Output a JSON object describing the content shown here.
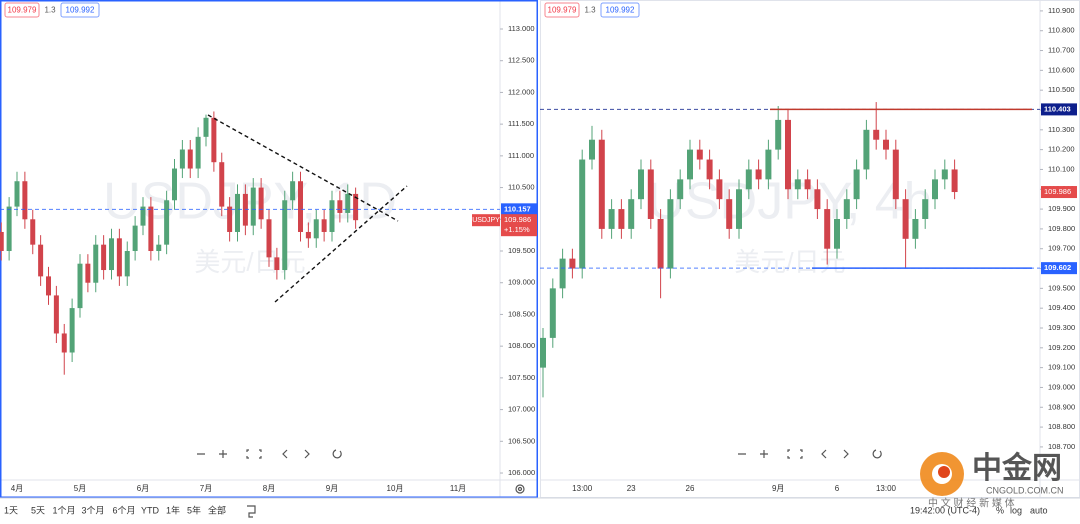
{
  "chart_data": [
    {
      "type": "candlestick",
      "title": "USDJPY, 1D",
      "subtitle": "美元/日元",
      "header_values": [
        109.979,
        1.3,
        109.992
      ],
      "categories": [
        null,
        null,
        "4月",
        null,
        null,
        null,
        null,
        null,
        null,
        null,
        "5月",
        null,
        null,
        null,
        null,
        null,
        null,
        null,
        "6月",
        null,
        null,
        null,
        null,
        null,
        null,
        null,
        "7月",
        null,
        null,
        null,
        null,
        null,
        null,
        null,
        "8月",
        null,
        null,
        null,
        null,
        null,
        null,
        null,
        "9月",
        null,
        null,
        null,
        null,
        null,
        null,
        null,
        "10月",
        null,
        null,
        null,
        null,
        null,
        null,
        null,
        "11月",
        null,
        null,
        null,
        null
      ],
      "series": [
        {
          "name": "USDJPY",
          "up_color": "#53a377",
          "down_color": "#d1434b",
          "open": [
            109.8,
            109.5,
            110.2,
            110.6,
            110.0,
            109.6,
            109.1,
            108.8,
            108.2,
            107.9,
            108.6,
            109.3,
            109.0,
            109.6,
            109.2,
            109.7,
            109.1,
            109.5,
            109.9,
            110.2,
            109.5,
            109.6,
            110.3,
            110.8,
            111.1,
            110.8,
            111.3,
            111.6,
            110.9,
            110.2,
            109.8,
            110.4,
            109.9,
            110.5,
            110.0,
            109.4,
            109.2,
            110.3,
            110.6,
            109.8,
            109.7,
            110.0,
            109.8,
            110.3,
            110.1,
            110.4,
            null,
            null,
            null,
            null,
            null,
            null,
            null,
            null,
            null,
            null,
            null,
            null,
            null,
            null,
            null,
            null,
            null
          ],
          "high": [
            109.95,
            110.35,
            110.75,
            110.75,
            110.15,
            109.75,
            109.25,
            108.95,
            108.35,
            108.75,
            109.45,
            109.45,
            109.75,
            109.75,
            109.85,
            109.85,
            109.65,
            110.05,
            110.35,
            110.35,
            109.75,
            110.45,
            110.95,
            111.25,
            111.25,
            111.45,
            111.65,
            111.7,
            111.05,
            110.35,
            110.55,
            110.55,
            110.65,
            110.65,
            110.15,
            109.55,
            110.45,
            110.75,
            110.75,
            109.95,
            110.15,
            110.15,
            110.45,
            110.45,
            110.55,
            110.5,
            null,
            null,
            null,
            null,
            null,
            null,
            null,
            null,
            null,
            null,
            null,
            null,
            null,
            null,
            null,
            null,
            null
          ],
          "low": [
            109.35,
            109.35,
            110.05,
            109.85,
            109.45,
            108.95,
            108.65,
            108.05,
            107.55,
            107.75,
            108.45,
            108.85,
            108.85,
            109.05,
            109.05,
            108.95,
            108.95,
            109.35,
            109.75,
            109.35,
            109.35,
            109.45,
            110.15,
            110.65,
            110.65,
            110.65,
            111.15,
            110.75,
            110.05,
            109.65,
            109.65,
            109.75,
            109.75,
            109.85,
            109.25,
            109.05,
            109.05,
            110.15,
            109.65,
            109.55,
            109.55,
            109.65,
            109.65,
            109.95,
            109.95,
            109.85,
            null,
            null,
            null,
            null,
            null,
            null,
            null,
            null,
            null,
            null,
            null,
            null,
            null,
            null,
            null,
            null,
            null
          ],
          "close": [
            109.5,
            110.2,
            110.6,
            110.0,
            109.6,
            109.1,
            108.8,
            108.2,
            107.9,
            108.6,
            109.3,
            109.0,
            109.6,
            109.2,
            109.7,
            109.1,
            109.5,
            109.9,
            110.2,
            109.5,
            109.6,
            110.3,
            110.8,
            111.1,
            110.8,
            111.3,
            111.6,
            110.9,
            110.2,
            109.8,
            110.4,
            109.9,
            110.5,
            110.0,
            109.4,
            109.2,
            110.3,
            110.6,
            109.8,
            109.7,
            110.0,
            109.8,
            110.3,
            110.1,
            110.4,
            109.986,
            null,
            null,
            null,
            null,
            null,
            null,
            null,
            null,
            null,
            null,
            null,
            null,
            null,
            null,
            null,
            null,
            null
          ]
        }
      ],
      "price_lines": [
        {
          "value": 110.157,
          "color": "#2962ff"
        }
      ],
      "last_price": 109.986,
      "change": "+1.15%",
      "ylim": [
        105.89,
        113.457
      ],
      "yticks": [
        {
          "value": 106,
          "label": "106.000"
        },
        {
          "value": 106.5,
          "label": "106.500"
        },
        {
          "value": 107,
          "label": "107.000"
        },
        {
          "value": 107.5,
          "label": "107.500"
        },
        {
          "value": 108,
          "label": "108.000"
        },
        {
          "value": 108.5,
          "label": "108.500"
        },
        {
          "value": 109,
          "label": "109.000"
        },
        {
          "value": 109.5,
          "label": "109.500"
        },
        {
          "value": 110,
          "label": "110.000"
        },
        {
          "value": 110.5,
          "label": "110.500"
        },
        {
          "value": 111,
          "label": "111.000"
        },
        {
          "value": 111.5,
          "label": "111.500"
        },
        {
          "value": 112,
          "label": "112.000"
        },
        {
          "value": 112.5,
          "label": "112.500"
        },
        {
          "value": 113,
          "label": "113.000"
        }
      ]
    },
    {
      "type": "candlestick",
      "title": "USDJPY, 4h",
      "subtitle": "美元/日元",
      "header_values": [
        109.979,
        1.3,
        109.992
      ],
      "categories": [
        null,
        null,
        null,
        null,
        "13:00",
        null,
        null,
        null,
        null,
        "23",
        null,
        null,
        null,
        null,
        null,
        "26",
        null,
        null,
        null,
        null,
        null,
        null,
        null,
        null,
        "9月",
        null,
        null,
        null,
        null,
        null,
        "6",
        null,
        null,
        null,
        null,
        "13:00",
        null,
        null,
        null,
        null,
        null,
        null,
        null,
        null,
        null,
        null,
        null,
        null,
        null,
        null,
        null
      ],
      "series": [
        {
          "up_color": "#53a377",
          "down_color": "#d1434b",
          "open": [
            109.1,
            109.25,
            109.5,
            109.65,
            109.6,
            110.15,
            110.25,
            109.8,
            109.9,
            109.8,
            109.95,
            110.1,
            109.85,
            109.6,
            109.95,
            110.05,
            110.2,
            110.15,
            110.05,
            109.95,
            109.8,
            110.0,
            110.1,
            110.05,
            110.2,
            110.35,
            110.0,
            110.05,
            110.0,
            109.9,
            109.7,
            109.85,
            109.95,
            110.1,
            110.3,
            110.25,
            110.2,
            109.95,
            109.75,
            109.85,
            109.95,
            110.05,
            110.1,
            null,
            null,
            null,
            null,
            null,
            null,
            null,
            null
          ],
          "high": [
            109.3,
            109.55,
            109.7,
            109.7,
            110.2,
            110.32,
            110.3,
            109.95,
            109.95,
            110.0,
            110.15,
            110.15,
            109.9,
            110.0,
            110.1,
            110.25,
            110.25,
            110.2,
            110.1,
            110.0,
            110.05,
            110.15,
            110.15,
            110.25,
            110.42,
            110.4,
            110.1,
            110.1,
            110.05,
            109.95,
            109.9,
            110.0,
            110.15,
            110.35,
            110.44,
            110.3,
            110.25,
            110.0,
            109.9,
            110.0,
            110.1,
            110.15,
            110.15,
            null,
            null,
            null,
            null,
            null,
            null,
            null,
            null
          ],
          "low": [
            108.95,
            109.2,
            109.45,
            109.55,
            109.55,
            110.1,
            109.75,
            109.75,
            109.75,
            109.75,
            109.9,
            109.8,
            109.45,
            109.55,
            109.9,
            110.0,
            110.1,
            110.0,
            109.9,
            109.75,
            109.75,
            109.95,
            110.0,
            110.0,
            110.15,
            109.95,
            109.95,
            109.95,
            109.85,
            109.62,
            109.65,
            109.8,
            109.9,
            110.05,
            110.2,
            110.15,
            109.9,
            109.6,
            109.7,
            109.8,
            109.9,
            110.0,
            109.95,
            null,
            null,
            null,
            null,
            null,
            null,
            null,
            null
          ],
          "close": [
            109.25,
            109.5,
            109.65,
            109.6,
            110.15,
            110.25,
            109.8,
            109.9,
            109.8,
            109.95,
            110.1,
            109.85,
            109.6,
            109.95,
            110.05,
            110.2,
            110.15,
            110.05,
            109.95,
            109.8,
            110.0,
            110.1,
            110.05,
            110.2,
            110.35,
            110.0,
            110.05,
            110.0,
            109.9,
            109.7,
            109.85,
            109.95,
            110.1,
            110.3,
            110.25,
            110.2,
            109.95,
            109.75,
            109.85,
            109.95,
            110.05,
            110.1,
            109.986,
            null,
            null,
            null,
            null,
            null,
            null,
            null,
            null
          ]
        }
      ],
      "price_lines": [
        {
          "value": 110.403,
          "color": "#0d1f8c"
        },
        {
          "value": 109.602,
          "color": "#2962ff"
        }
      ],
      "last_price": 109.986,
      "ylim": [
        108.533,
        110.955
      ],
      "yticks": [
        {
          "value": 108.7,
          "label": "108.700"
        },
        {
          "value": 108.8,
          "label": "108.800"
        },
        {
          "value": 108.9,
          "label": "108.900"
        },
        {
          "value": 109,
          "label": "109.000"
        },
        {
          "value": 109.1,
          "label": "109.100"
        },
        {
          "value": 109.2,
          "label": "109.200"
        },
        {
          "value": 109.3,
          "label": "109.300"
        },
        {
          "value": 109.4,
          "label": "109.400"
        },
        {
          "value": 109.5,
          "label": "109.500"
        },
        {
          "value": 109.6,
          "label": "109.600"
        },
        {
          "value": 109.7,
          "label": "109.700"
        },
        {
          "value": 109.8,
          "label": "109.800"
        },
        {
          "value": 109.9,
          "label": "109.900"
        },
        {
          "value": 110,
          "label": "110.000"
        },
        {
          "value": 110.1,
          "label": "110.100"
        },
        {
          "value": 110.2,
          "label": "110.200"
        },
        {
          "value": 110.3,
          "label": "110.300"
        },
        {
          "value": 110.4,
          "label": "110.400"
        },
        {
          "value": 110.5,
          "label": "110.500"
        },
        {
          "value": 110.6,
          "label": "110.600"
        },
        {
          "value": 110.7,
          "label": "110.700"
        },
        {
          "value": 110.8,
          "label": "110.800"
        },
        {
          "value": 110.9,
          "label": "110.900"
        }
      ]
    }
  ],
  "toolbar": {
    "ranges": [
      "1天",
      "5天",
      "1个月",
      "3个月",
      "6个月",
      "YTD",
      "1年",
      "5年",
      "全部"
    ],
    "time": "19:42:00 (UTC-4)",
    "options": [
      "%",
      "log",
      "auto"
    ]
  },
  "logo": {
    "name": "中金网",
    "domain": "CNGOLD.COM.CN",
    "slogan": "中 文 财 经 新 媒 体"
  }
}
